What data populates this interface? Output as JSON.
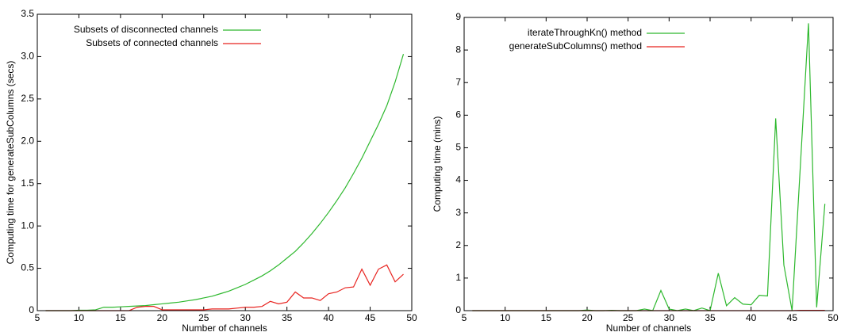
{
  "chart_data": [
    {
      "type": "line",
      "x_label": "Number of channels",
      "y_label": "Computing time for generateSubColumns (secs)",
      "x": [
        6,
        7,
        8,
        9,
        10,
        11,
        12,
        13,
        14,
        15,
        16,
        17,
        18,
        19,
        20,
        21,
        22,
        23,
        24,
        25,
        26,
        27,
        28,
        29,
        30,
        31,
        32,
        33,
        34,
        35,
        36,
        37,
        38,
        39,
        40,
        41,
        42,
        43,
        44,
        45,
        46,
        47,
        48,
        49
      ],
      "series": [
        {
          "name": "Subsets of disconnected channels",
          "color": "#2db82d",
          "values": [
            0,
            0,
            0,
            0,
            0.005,
            0.005,
            0.01,
            0.04,
            0.04,
            0.045,
            0.05,
            0.055,
            0.06,
            0.07,
            0.08,
            0.09,
            0.1,
            0.115,
            0.13,
            0.15,
            0.17,
            0.2,
            0.23,
            0.27,
            0.31,
            0.36,
            0.41,
            0.47,
            0.54,
            0.62,
            0.7,
            0.8,
            0.91,
            1.03,
            1.16,
            1.3,
            1.45,
            1.62,
            1.8,
            2.0,
            2.2,
            2.42,
            2.7,
            3.03
          ]
        },
        {
          "name": "Subsets of connected channels",
          "color": "#e8231f",
          "values": [
            0,
            0,
            0,
            0,
            0,
            0,
            0,
            0,
            0,
            0,
            0,
            0.04,
            0.05,
            0.05,
            0.01,
            0.01,
            0.01,
            0.01,
            0.01,
            0.01,
            0.02,
            0.02,
            0.02,
            0.03,
            0.04,
            0.04,
            0.05,
            0.11,
            0.08,
            0.1,
            0.22,
            0.15,
            0.15,
            0.12,
            0.2,
            0.22,
            0.27,
            0.28,
            0.49,
            0.3,
            0.49,
            0.54,
            0.34,
            0.43
          ]
        }
      ],
      "xlim": [
        5,
        50
      ],
      "xticks": [
        5,
        10,
        15,
        20,
        25,
        30,
        35,
        40,
        45,
        50
      ],
      "ylim": [
        0,
        3.5
      ],
      "yticks": [
        0,
        0.5,
        {
          "value": 1,
          "label": "1.0"
        },
        1.5,
        {
          "value": 2,
          "label": "2.0"
        },
        2.5,
        {
          "value": 3,
          "label": "3.0"
        },
        3.5
      ],
      "legend": "upper-left"
    },
    {
      "type": "line",
      "x_label": "Number of channels",
      "y_label": "Computing time (mins)",
      "x": [
        6,
        7,
        8,
        9,
        10,
        11,
        12,
        13,
        14,
        15,
        16,
        17,
        18,
        19,
        20,
        21,
        22,
        23,
        24,
        25,
        26,
        27,
        28,
        29,
        30,
        31,
        32,
        33,
        34,
        35,
        36,
        37,
        38,
        39,
        40,
        41,
        42,
        43,
        44,
        45,
        46,
        47,
        48,
        49
      ],
      "series": [
        {
          "name": "iterateThroughKn() method",
          "color": "#2db82d",
          "values": [
            0,
            0,
            0,
            0,
            0,
            0,
            0,
            0,
            0,
            0,
            0,
            0,
            0,
            0,
            0.02,
            0,
            0,
            0.01,
            0,
            0,
            0,
            0.05,
            0,
            0.62,
            0.05,
            0,
            0.05,
            0,
            0.08,
            0,
            1.15,
            0.15,
            0.4,
            0.2,
            0.18,
            0.47,
            0.45,
            5.9,
            1.4,
            0,
            4.4,
            8.82,
            0.1,
            3.28
          ]
        },
        {
          "name": "generateSubColumns() method",
          "color": "#e8231f",
          "values": [
            0,
            0,
            0,
            0,
            0,
            0,
            0,
            0,
            0,
            0,
            0,
            0,
            0,
            0,
            0,
            0,
            0,
            0,
            0,
            0,
            0,
            0,
            0,
            0,
            0,
            0,
            0,
            0,
            0,
            0,
            0,
            0,
            0,
            0,
            0,
            0,
            0,
            0,
            0,
            0,
            0.01,
            0.01,
            0.01,
            0.01
          ]
        }
      ],
      "xlim": [
        5,
        50
      ],
      "xticks": [
        5,
        10,
        15,
        20,
        25,
        30,
        35,
        40,
        45,
        50
      ],
      "ylim": [
        0,
        9
      ],
      "yticks": [
        0,
        1,
        2,
        3,
        4,
        5,
        6,
        7,
        8,
        9
      ],
      "legend": "upper-left"
    }
  ]
}
